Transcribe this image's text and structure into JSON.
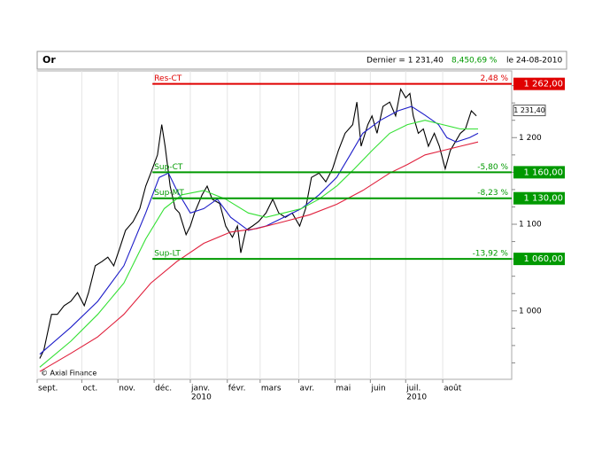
{
  "chart_data": {
    "type": "line",
    "title": "Or",
    "quote": {
      "last": "Dernier = 1 231,40",
      "change": "8,45",
      "change_pct": "0,69 %",
      "date": "le 24-08-2010"
    },
    "credit": "© Axial Finance",
    "xlim": [
      0,
      56.4
    ],
    "xticks": [
      {
        "value": 0,
        "label": "sept."
      },
      {
        "value": 5.3,
        "label": "oct."
      },
      {
        "value": 9.6,
        "label": "nov."
      },
      {
        "value": 13.9,
        "label": "déc."
      },
      {
        "value": 18.2,
        "label": "janv."
      },
      {
        "value": 22.6,
        "label": "févr."
      },
      {
        "value": 26.5,
        "label": "mars"
      },
      {
        "value": 31.1,
        "label": "avr."
      },
      {
        "value": 35.4,
        "label": "mai"
      },
      {
        "value": 39.6,
        "label": "juin"
      },
      {
        "value": 43.8,
        "label": "juil."
      },
      {
        "value": 48.2,
        "label": "août"
      }
    ],
    "year_ticks": [
      {
        "value": 18.2,
        "label": "2010"
      },
      {
        "value": 43.8,
        "label": "2010"
      }
    ],
    "ylim": [
      921,
      1277
    ],
    "yticks": [
      {
        "value": 1000,
        "label": "1 000"
      },
      {
        "value": 1100,
        "label": "1 100"
      },
      {
        "value": 1200,
        "label": "1 200"
      }
    ],
    "minor_yticks": [
      940,
      960,
      980,
      1020,
      1040,
      1060,
      1080,
      1120,
      1140,
      1160,
      1180,
      1220,
      1240,
      1260
    ],
    "grid": true,
    "series": [
      {
        "color": "#000000",
        "x": [
          0.3,
          0.8,
          1.7,
          2.4,
          3.2,
          4.0,
          4.8,
          5.6,
          6.1,
          6.9,
          7.7,
          8.4,
          9.1,
          9.8,
          10.5,
          11.4,
          12.2,
          12.9,
          13.5,
          14.3,
          14.8,
          15.2,
          15.8,
          16.4,
          16.9,
          17.7,
          18.2,
          18.7,
          19.6,
          20.2,
          20.8,
          21.7,
          22.4,
          23.2,
          23.8,
          24.2,
          24.8,
          25.6,
          26.3,
          27.2,
          28.0,
          28.7,
          29.5,
          30.3,
          31.2,
          31.9,
          32.6,
          33.5,
          34.3,
          35.1,
          35.8,
          36.6,
          37.5,
          38.0,
          38.5,
          39.3,
          39.8,
          40.4,
          41.1,
          41.9,
          42.6,
          43.2,
          43.8,
          44.3,
          44.7,
          45.3,
          45.9,
          46.5,
          47.2,
          47.8,
          48.5,
          49.1,
          49.7,
          50.3,
          50.9,
          51.6,
          52.2
        ],
        "values": [
          945,
          955,
          996,
          996,
          1006,
          1011,
          1021,
          1006,
          1021,
          1052,
          1057,
          1062,
          1052,
          1072,
          1093,
          1103,
          1118,
          1144,
          1159,
          1180,
          1215,
          1190,
          1144,
          1118,
          1113,
          1088,
          1098,
          1113,
          1134,
          1144,
          1129,
          1124,
          1098,
          1085,
          1098,
          1067,
          1093,
          1098,
          1103,
          1113,
          1129,
          1113,
          1108,
          1113,
          1098,
          1118,
          1154,
          1159,
          1149,
          1164,
          1185,
          1205,
          1215,
          1241,
          1190,
          1215,
          1225,
          1205,
          1236,
          1241,
          1225,
          1256,
          1246,
          1251,
          1225,
          1205,
          1210,
          1190,
          1205,
          1190,
          1164,
          1185,
          1195,
          1205,
          1210,
          1231,
          1225
        ]
      },
      {
        "color": "#1c1cc8",
        "x": [
          0.3,
          4.0,
          7.2,
          10.3,
          12.9,
          14.5,
          15.6,
          16.6,
          18.2,
          19.8,
          21.4,
          23.0,
          25.1,
          27.2,
          29.3,
          31.4,
          33.5,
          35.6,
          37.2,
          38.7,
          40.8,
          42.9,
          44.5,
          46.1,
          47.7,
          48.7,
          49.8,
          51.4,
          52.4
        ],
        "values": [
          950,
          981,
          1011,
          1052,
          1113,
          1154,
          1159,
          1139,
          1113,
          1118,
          1129,
          1108,
          1093,
          1098,
          1108,
          1118,
          1134,
          1154,
          1180,
          1205,
          1220,
          1231,
          1236,
          1226,
          1215,
          1200,
          1195,
          1200,
          1205
        ]
      },
      {
        "color": "#33e033",
        "x": [
          0.3,
          4.0,
          7.2,
          10.3,
          12.9,
          15.1,
          17.2,
          19.8,
          22.4,
          25.1,
          27.2,
          29.3,
          31.4,
          33.5,
          35.6,
          37.7,
          39.8,
          41.9,
          44.0,
          46.1,
          48.2,
          50.3,
          52.4
        ],
        "values": [
          935,
          965,
          996,
          1032,
          1083,
          1118,
          1134,
          1139,
          1129,
          1113,
          1108,
          1113,
          1118,
          1129,
          1144,
          1164,
          1185,
          1205,
          1215,
          1220,
          1215,
          1210,
          1210
        ]
      },
      {
        "color": "#e0203c",
        "x": [
          0.3,
          4.0,
          7.2,
          10.3,
          13.5,
          16.6,
          19.8,
          23.0,
          26.1,
          29.3,
          32.4,
          35.6,
          38.7,
          41.9,
          44.0,
          46.1,
          48.2,
          50.3,
          52.4
        ],
        "values": [
          930,
          951,
          970,
          996,
          1032,
          1057,
          1078,
          1091,
          1095,
          1103,
          1111,
          1123,
          1139,
          1159,
          1169,
          1180,
          1185,
          1190,
          1195
        ]
      }
    ],
    "last_price": {
      "value": 1231.4,
      "label": "1 231,40"
    },
    "levels": [
      {
        "label": "Res-CT",
        "value": 1262,
        "pct": "2,48 %",
        "value_label": "1 262,00",
        "color": "#e00000",
        "x_start": 13.7
      },
      {
        "label": "Sup-CT",
        "value": 1160,
        "pct": "-5,80 %",
        "value_label": "1 160,00",
        "color": "#009900",
        "x_start": 13.7
      },
      {
        "label": "Sup-MT",
        "value": 1130,
        "pct": "-8,23 %",
        "value_label": "1 130,00",
        "color": "#009900",
        "x_start": 13.7
      },
      {
        "label": "Sup-LT",
        "value": 1060,
        "pct": "-13,92 %",
        "value_label": "1 060,00",
        "color": "#009900",
        "x_start": 13.7
      }
    ]
  }
}
